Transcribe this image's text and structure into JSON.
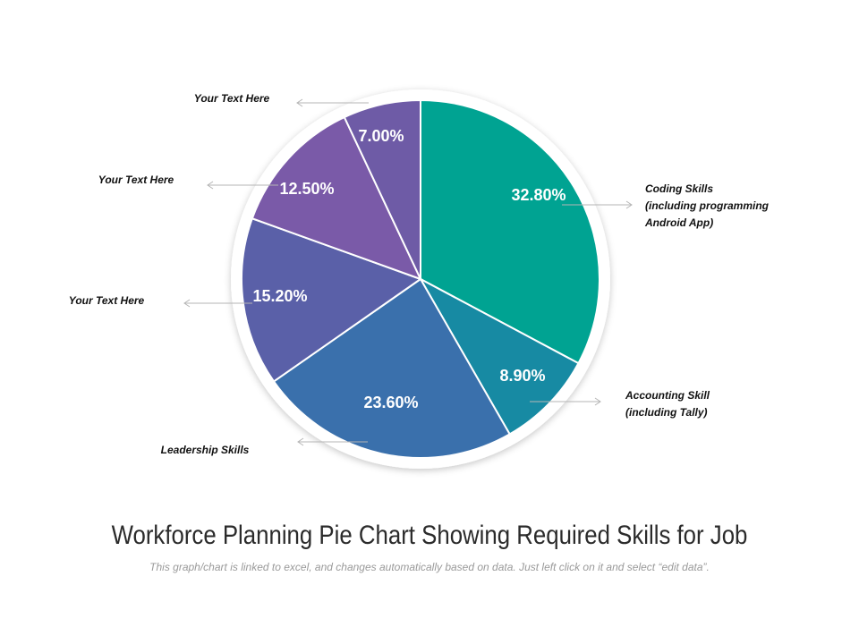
{
  "chart_data": {
    "type": "pie",
    "title": "Workforce Planning Pie Chart Showing Required Skills for Job",
    "subtitle": "This graph/chart is linked to excel, and changes automatically based on data. Just left click on it and select “edit data”.",
    "slices": [
      {
        "value_label": "32.80%",
        "value": 32.8,
        "color": "#00A392",
        "label_lines": [
          "Coding Skills",
          "(including programming",
          "Android App)"
        ]
      },
      {
        "value_label": "8.90%",
        "value": 8.9,
        "color": "#178AA3",
        "label_lines": [
          "Accounting Skill",
          "(including Tally)"
        ]
      },
      {
        "value_label": "23.60%",
        "value": 23.6,
        "color": "#3A70AC",
        "label_lines": [
          "Leadership Skills"
        ]
      },
      {
        "value_label": "15.20%",
        "value": 15.2,
        "color": "#5A60A8",
        "label_lines": [
          "Your Text Here"
        ]
      },
      {
        "value_label": "12.50%",
        "value": 12.5,
        "color": "#7A5AA8",
        "label_lines": [
          "Your Text Here"
        ]
      },
      {
        "value_label": "7.00%",
        "value": 7.0,
        "color": "#6E5BA6",
        "label_lines": [
          "Your Text Here"
        ]
      }
    ]
  }
}
